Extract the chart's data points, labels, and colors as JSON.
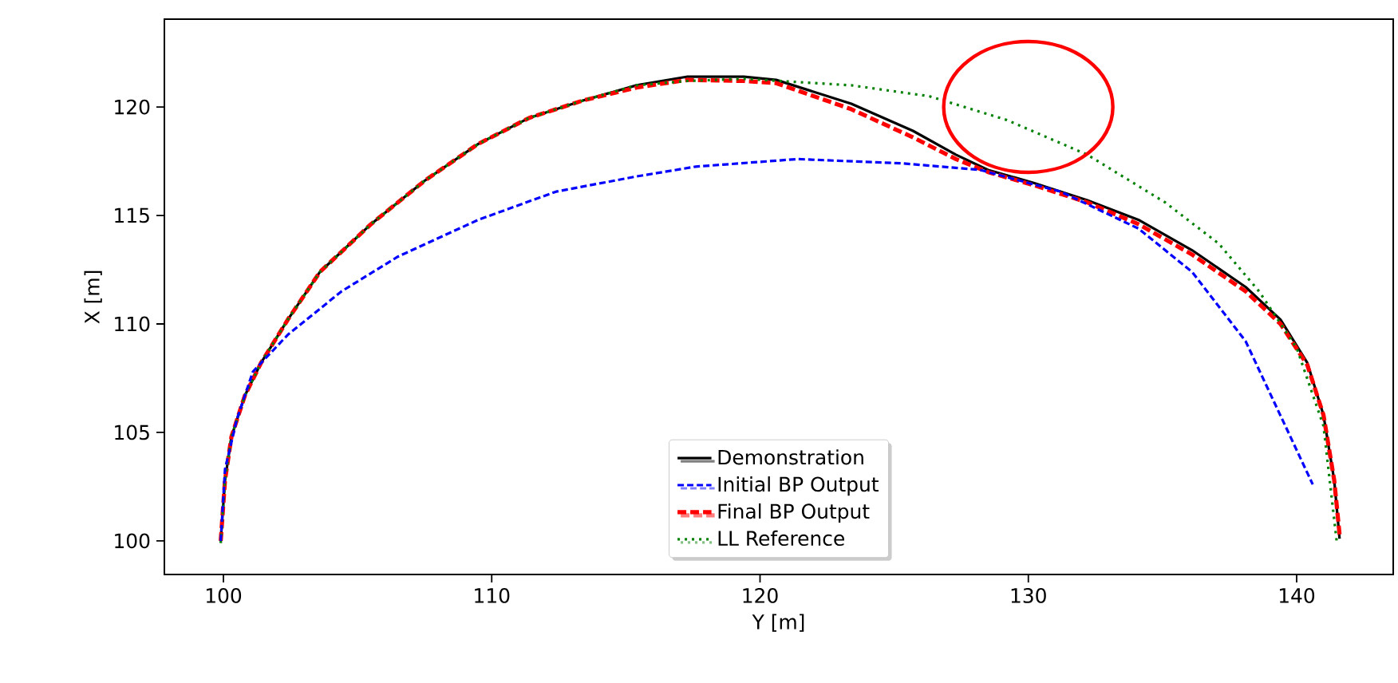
{
  "chart_data": {
    "type": "line",
    "xlabel": "Y [m]",
    "ylabel": "X [m]",
    "xlim": [
      97.8,
      143.6
    ],
    "ylim": [
      98.45,
      124.05
    ],
    "xticks": [
      100,
      110,
      120,
      130,
      140
    ],
    "yticks": [
      100,
      105,
      110,
      115,
      120
    ],
    "grid": false,
    "legend": "bottom",
    "marker": "none",
    "series": [
      {
        "name": "Demonstration",
        "color": "#000000",
        "line_style": "solid",
        "x": [
          99.9,
          100.06,
          100.3,
          100.8,
          101.4,
          102.4,
          103.6,
          105.5,
          107.5,
          109.5,
          111.4,
          113.4,
          115.4,
          117.3,
          119.4,
          120.6,
          123.4,
          125.7,
          127.3,
          128.5,
          130.2,
          132.2,
          134.1,
          136.1,
          138.1,
          139.4,
          140.4,
          141.0,
          141.4,
          141.6
        ],
        "values": [
          100.0,
          102.8,
          104.8,
          106.7,
          108.2,
          110.2,
          112.4,
          114.6,
          116.6,
          118.3,
          119.5,
          120.3,
          121.0,
          121.4,
          121.4,
          121.25,
          120.15,
          118.9,
          117.8,
          117.1,
          116.5,
          115.7,
          114.8,
          113.4,
          111.7,
          110.2,
          108.2,
          105.8,
          102.8,
          100.1
        ]
      },
      {
        "name": "Initial BP Output",
        "color": "#0000ff",
        "line_style": "dashed",
        "x": [
          99.9,
          100.06,
          100.5,
          101.1,
          102.4,
          104.4,
          106.5,
          109.5,
          112.4,
          115.4,
          117.6,
          121.4,
          125.3,
          128.2,
          131.2,
          134.1,
          136.1,
          138.1,
          140.6
        ],
        "values": [
          100.0,
          103.3,
          105.6,
          107.8,
          109.5,
          111.5,
          113.1,
          114.8,
          116.1,
          116.8,
          117.25,
          117.6,
          117.4,
          117.1,
          116.1,
          114.4,
          112.4,
          109.2,
          102.6
        ]
      },
      {
        "name": "Final BP Output",
        "color": "#ff0000",
        "line_style": "dashed",
        "x": [
          99.9,
          100.06,
          100.3,
          100.8,
          101.4,
          102.4,
          103.6,
          105.5,
          107.5,
          109.5,
          111.4,
          113.4,
          115.4,
          117.3,
          119.4,
          120.6,
          123.4,
          125.7,
          127.3,
          128.5,
          130.2,
          132.2,
          134.1,
          136.1,
          138.1,
          139.4,
          140.4,
          141.0,
          141.4,
          141.6
        ],
        "values": [
          100.0,
          102.8,
          104.8,
          106.7,
          108.2,
          110.2,
          112.4,
          114.6,
          116.6,
          118.3,
          119.5,
          120.3,
          120.9,
          121.25,
          121.2,
          121.1,
          119.9,
          118.6,
          117.6,
          117.0,
          116.4,
          115.6,
          114.6,
          113.2,
          111.5,
          110.0,
          108.1,
          105.8,
          102.8,
          100.3
        ]
      },
      {
        "name": "LL Reference",
        "color": "#008000",
        "line_style": "dotted",
        "x": [
          99.9,
          100.06,
          100.3,
          100.8,
          101.4,
          102.4,
          103.6,
          105.5,
          107.5,
          109.5,
          111.4,
          113.4,
          115.4,
          117.3,
          119.4,
          123.4,
          126.3,
          129.2,
          132.2,
          135.1,
          137.1,
          138.6,
          140.0,
          141.0,
          141.5
        ],
        "values": [
          99.9,
          102.8,
          104.8,
          106.7,
          108.2,
          110.2,
          112.4,
          114.6,
          116.6,
          118.3,
          119.5,
          120.3,
          121.0,
          121.2,
          121.3,
          121.0,
          120.5,
          119.4,
          117.8,
          115.6,
          113.7,
          111.5,
          108.9,
          105.3,
          99.9
        ]
      }
    ]
  }
}
